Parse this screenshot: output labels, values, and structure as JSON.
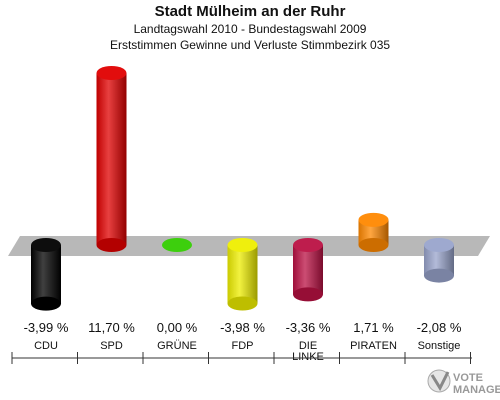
{
  "header": {
    "title": "Stadt Mülheim an der Ruhr",
    "subtitle1": "Landtagswahl 2010 - Bundestagswahl 2009",
    "subtitle2": "Erststimmen Gewinne und Verluste Stimmbezirk 035"
  },
  "chart_data": {
    "type": "bar",
    "title": "Stadt Mülheim an der Ruhr",
    "categories": [
      "CDU",
      "SPD",
      "GRÜNE",
      "FDP",
      "DIE LINKE",
      "PIRATEN",
      "Sonstige"
    ],
    "values": [
      -3.99,
      11.7,
      0.0,
      -3.98,
      -3.36,
      1.71,
      -2.08
    ],
    "value_labels": [
      "-3,99 %",
      "11,70 %",
      "0,00 %",
      "-3,98 %",
      "-3,36 %",
      "1,71 %",
      "-2,08 %"
    ],
    "colors": [
      "#000000",
      "#e00000",
      "#33cc00",
      "#eeee00",
      "#bb1144",
      "#ff8800",
      "#99a4cc"
    ],
    "ylabel": "",
    "xlabel": ""
  },
  "logo": {
    "text": "VOTE MANAGER"
  }
}
